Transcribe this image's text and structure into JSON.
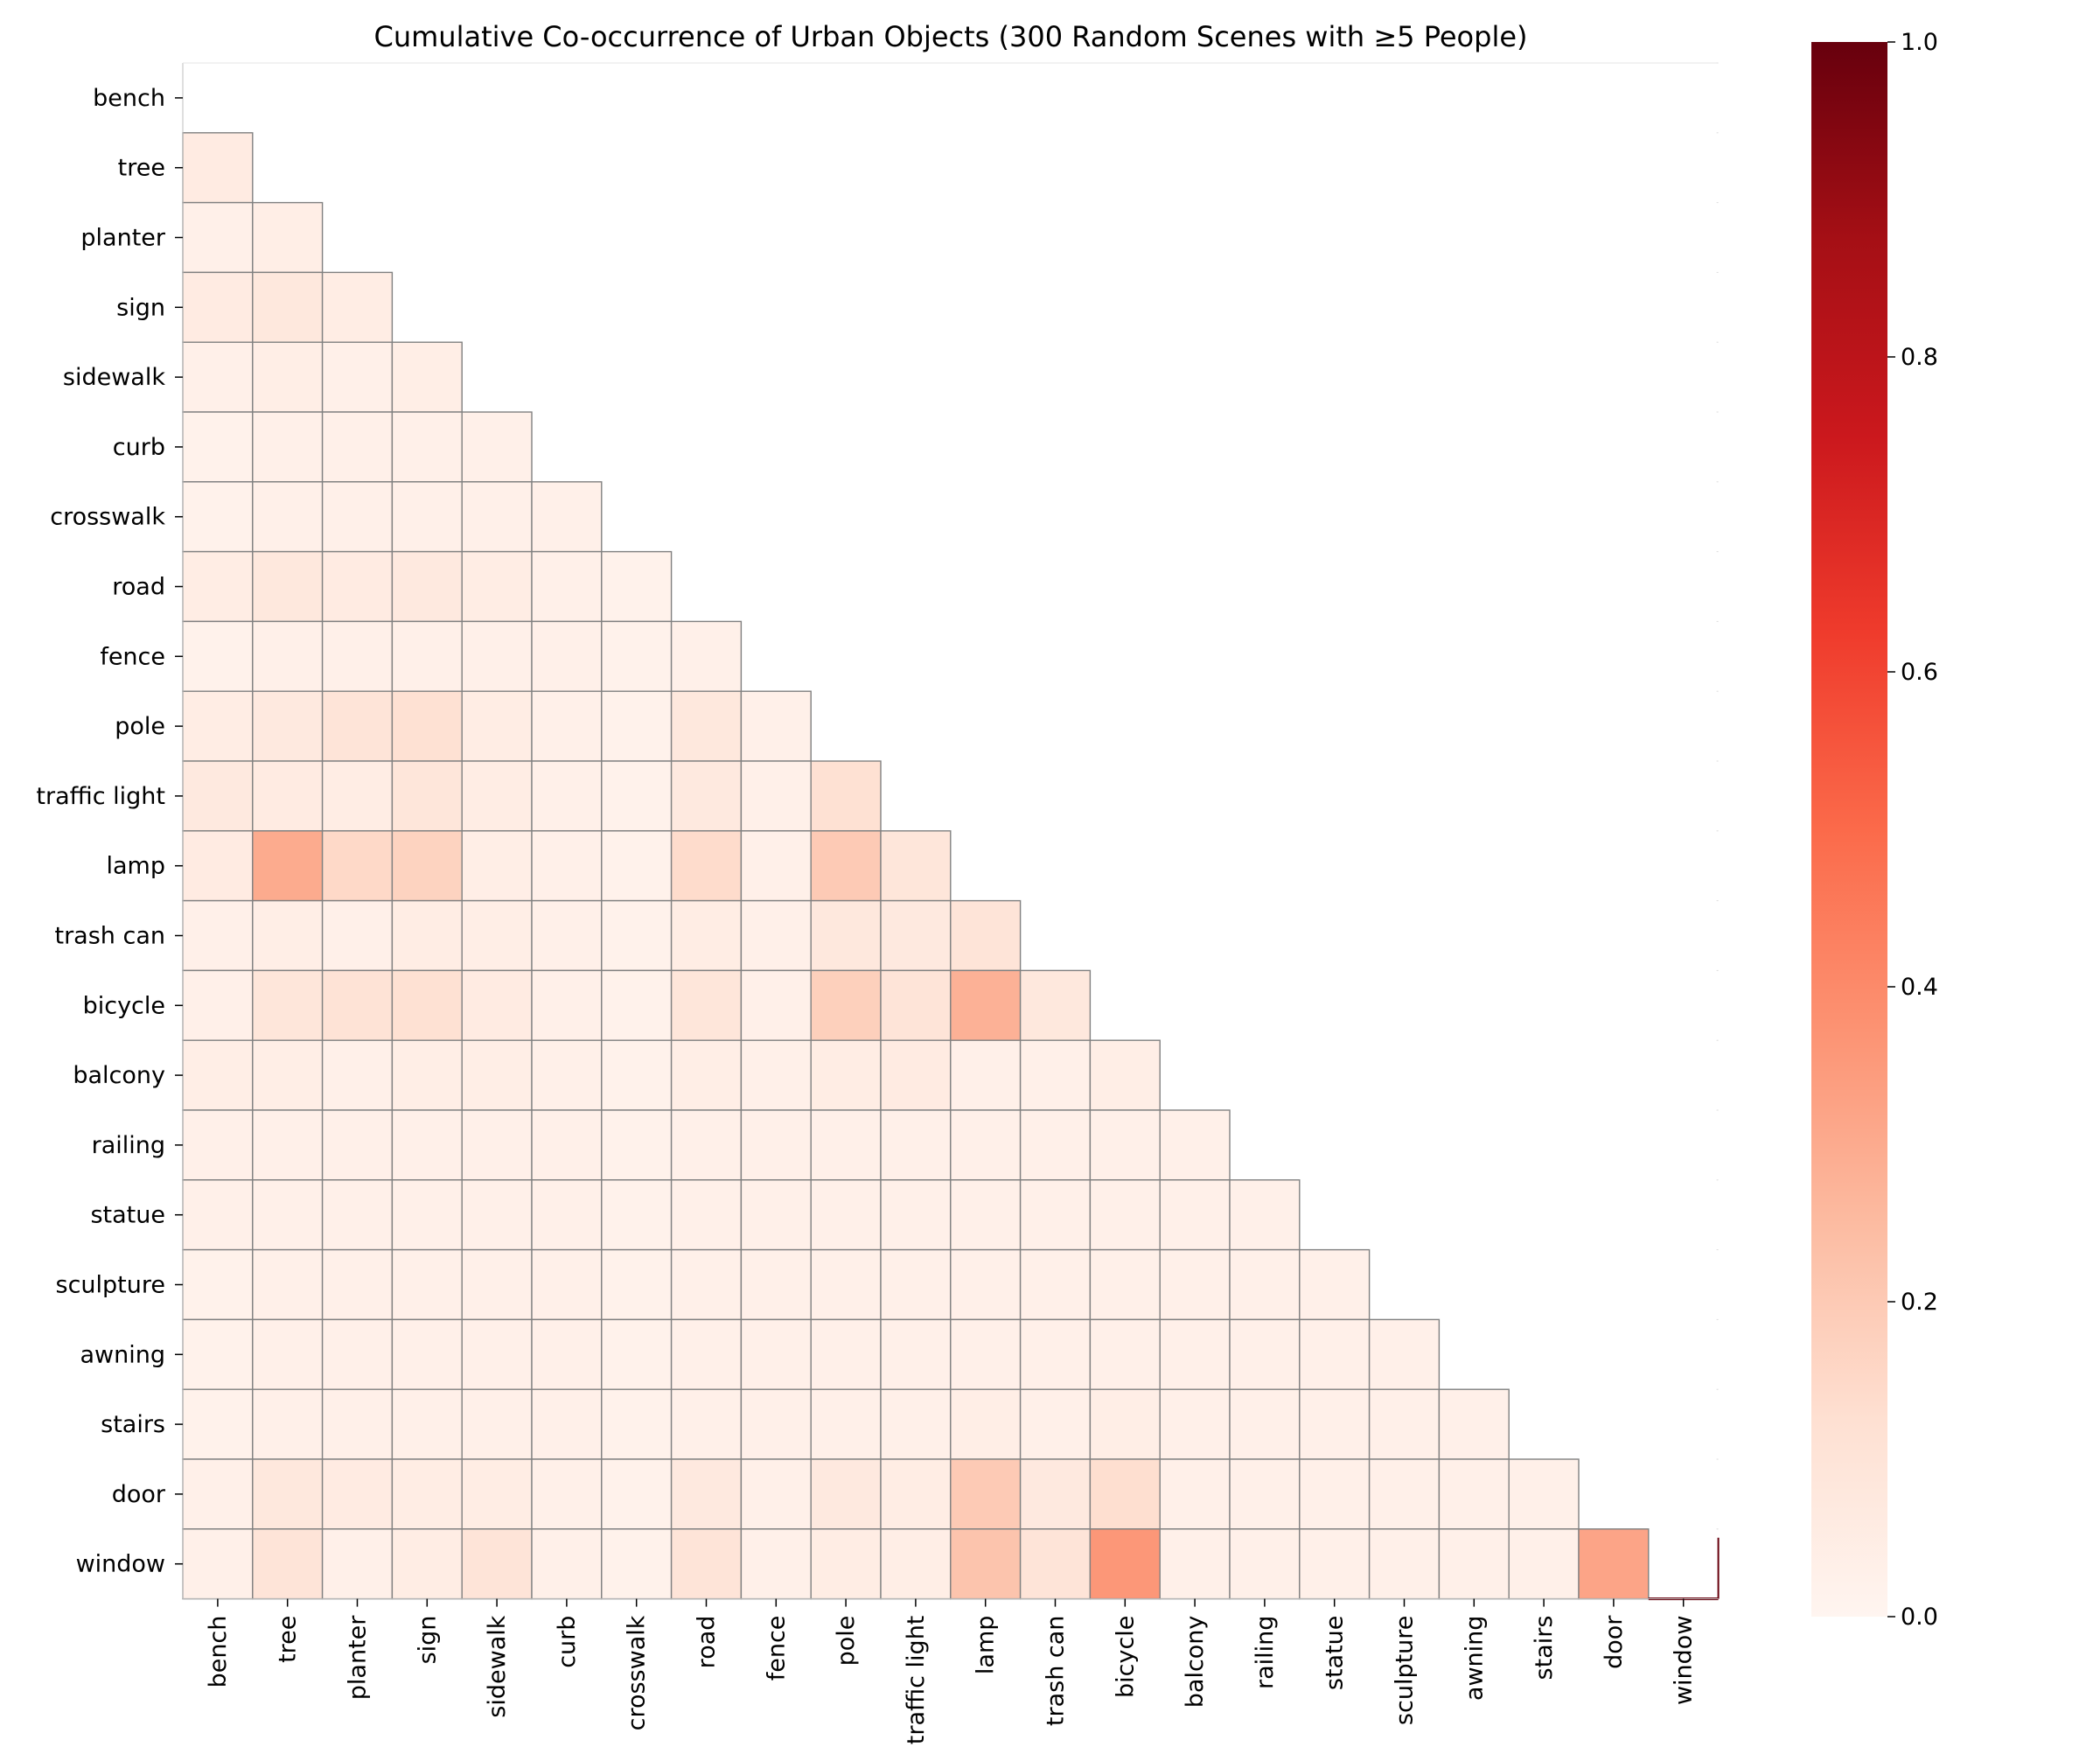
{
  "chart_data": {
    "type": "heatmap",
    "title": "Cumulative Co-occurrence of Urban Objects (300 Random Scenes with ≥5 People)",
    "xlabel": "",
    "ylabel": "",
    "mask": "upper-triangle",
    "colormap": "Reds",
    "labels": [
      "bench",
      "tree",
      "planter",
      "sign",
      "sidewalk",
      "curb",
      "crosswalk",
      "road",
      "fence",
      "pole",
      "traffic light",
      "lamp",
      "trash can",
      "bicycle",
      "balcony",
      "railing",
      "statue",
      "sculpture",
      "awning",
      "stairs",
      "door",
      "window"
    ],
    "values": [
      [],
      [
        0.06
      ],
      [
        0.03,
        0.04
      ],
      [
        0.06,
        0.08,
        0.05
      ],
      [
        0.03,
        0.04,
        0.03,
        0.04
      ],
      [
        0.02,
        0.03,
        0.03,
        0.03,
        0.03
      ],
      [
        0.02,
        0.03,
        0.03,
        0.03,
        0.03,
        0.03
      ],
      [
        0.05,
        0.08,
        0.06,
        0.07,
        0.05,
        0.03,
        0.02
      ],
      [
        0.02,
        0.03,
        0.03,
        0.03,
        0.03,
        0.03,
        0.02,
        0.03
      ],
      [
        0.05,
        0.07,
        0.1,
        0.12,
        0.05,
        0.03,
        0.02,
        0.08,
        0.03
      ],
      [
        0.07,
        0.06,
        0.05,
        0.09,
        0.05,
        0.03,
        0.02,
        0.07,
        0.03,
        0.12
      ],
      [
        0.06,
        0.3,
        0.15,
        0.17,
        0.04,
        0.03,
        0.02,
        0.14,
        0.03,
        0.2,
        0.09
      ],
      [
        0.03,
        0.04,
        0.03,
        0.05,
        0.04,
        0.03,
        0.02,
        0.05,
        0.03,
        0.08,
        0.07,
        0.1
      ],
      [
        0.03,
        0.09,
        0.11,
        0.12,
        0.06,
        0.03,
        0.02,
        0.09,
        0.03,
        0.18,
        0.1,
        0.28,
        0.08
      ],
      [
        0.04,
        0.04,
        0.03,
        0.04,
        0.04,
        0.03,
        0.02,
        0.04,
        0.03,
        0.05,
        0.06,
        0.03,
        0.03,
        0.04
      ],
      [
        0.03,
        0.03,
        0.03,
        0.03,
        0.03,
        0.03,
        0.02,
        0.03,
        0.03,
        0.03,
        0.03,
        0.03,
        0.03,
        0.03,
        0.03
      ],
      [
        0.03,
        0.03,
        0.03,
        0.03,
        0.03,
        0.03,
        0.02,
        0.03,
        0.03,
        0.03,
        0.03,
        0.03,
        0.03,
        0.03,
        0.03,
        0.03
      ],
      [
        0.02,
        0.03,
        0.03,
        0.03,
        0.03,
        0.03,
        0.02,
        0.03,
        0.03,
        0.03,
        0.03,
        0.03,
        0.03,
        0.03,
        0.03,
        0.03,
        0.03
      ],
      [
        0.02,
        0.03,
        0.03,
        0.03,
        0.03,
        0.03,
        0.02,
        0.03,
        0.03,
        0.03,
        0.03,
        0.03,
        0.03,
        0.03,
        0.03,
        0.03,
        0.03,
        0.03
      ],
      [
        0.02,
        0.03,
        0.03,
        0.03,
        0.03,
        0.03,
        0.02,
        0.03,
        0.03,
        0.03,
        0.03,
        0.04,
        0.03,
        0.04,
        0.03,
        0.03,
        0.03,
        0.03,
        0.03
      ],
      [
        0.03,
        0.08,
        0.06,
        0.05,
        0.05,
        0.03,
        0.02,
        0.07,
        0.03,
        0.07,
        0.05,
        0.2,
        0.07,
        0.13,
        0.03,
        0.03,
        0.03,
        0.03,
        0.03,
        0.03
      ],
      [
        0.03,
        0.1,
        0.03,
        0.05,
        0.1,
        0.03,
        0.02,
        0.1,
        0.03,
        0.05,
        0.04,
        0.22,
        0.1,
        0.36,
        0.03,
        0.03,
        0.03,
        0.03,
        0.03,
        0.03,
        0.32
      ]
    ],
    "colorbar": {
      "ticks": [
        0.0,
        0.2,
        0.4,
        0.6,
        0.8,
        1.0
      ],
      "tick_labels": [
        "0.0",
        "0.2",
        "0.4",
        "0.6",
        "0.8",
        "1.0"
      ],
      "vmin": 0.0,
      "vmax": 1.0
    }
  }
}
